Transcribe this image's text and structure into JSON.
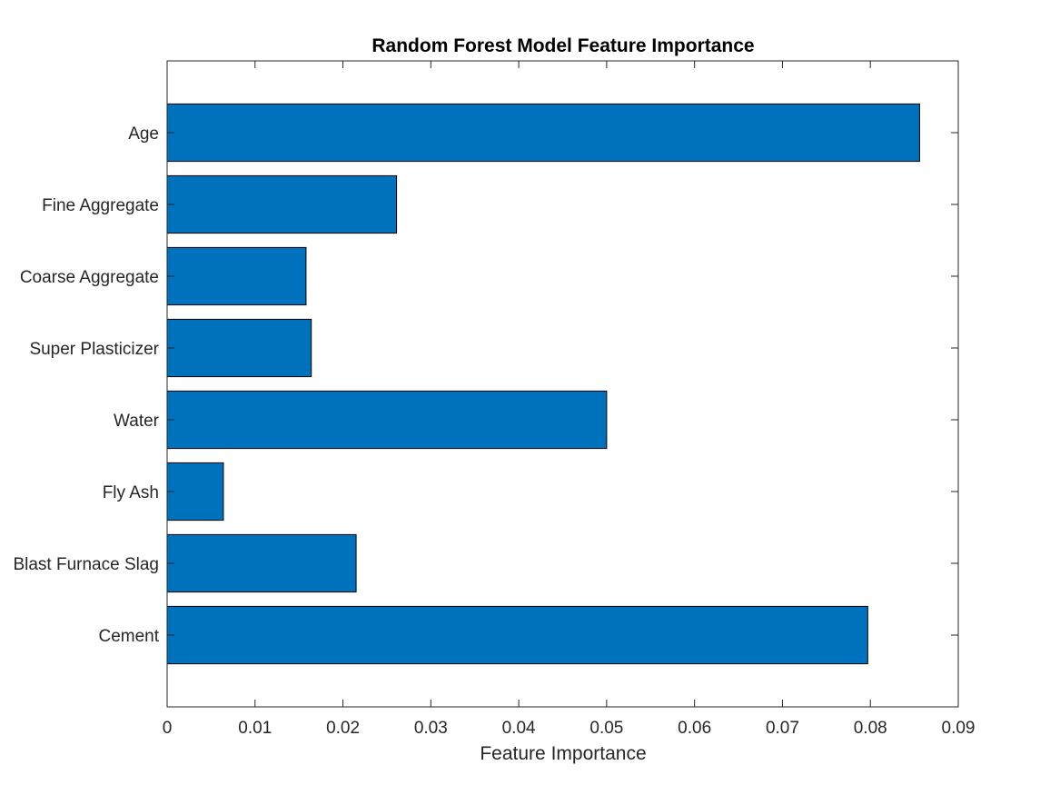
{
  "chart_data": {
    "type": "bar",
    "orientation": "horizontal",
    "title": "Random Forest Model Feature Importance",
    "xlabel": "Feature Importance",
    "ylabel": "",
    "categories": [
      "Cement",
      "Blast Furnace Slag",
      "Fly Ash",
      "Water",
      "Super Plasticizer",
      "Coarse Aggregate",
      "Fine Aggregate",
      "Age"
    ],
    "values": [
      0.0797,
      0.0215,
      0.0064,
      0.05,
      0.0164,
      0.0158,
      0.0261,
      0.0856
    ],
    "xlim": [
      0,
      0.09
    ],
    "xticks": [
      "0",
      "0.01",
      "0.02",
      "0.03",
      "0.04",
      "0.05",
      "0.06",
      "0.07",
      "0.08",
      "0.09"
    ],
    "grid": false,
    "legend": "none",
    "colors": {
      "bar": "#0072BD",
      "edge": "#000000",
      "axis": "#262626"
    }
  }
}
